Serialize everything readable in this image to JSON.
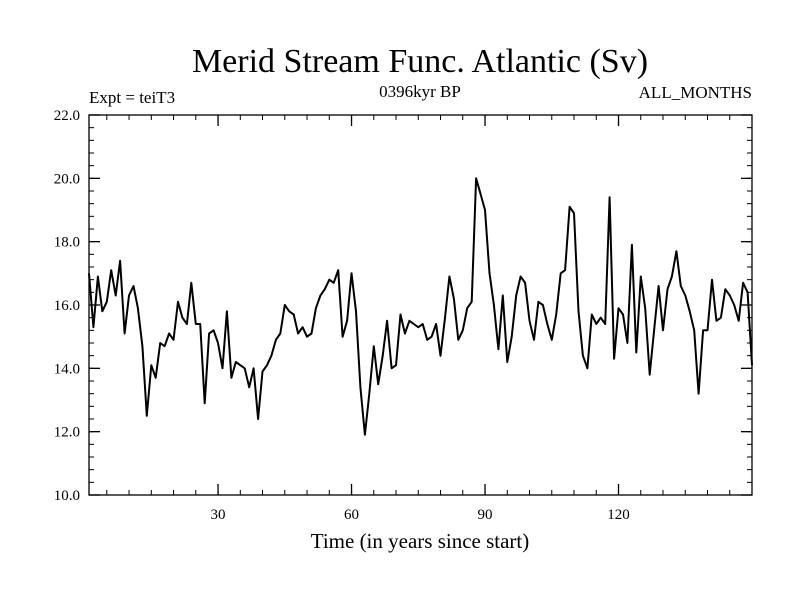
{
  "chart_data": {
    "type": "line",
    "title": "Merid Stream Func. Atlantic (Sv)",
    "left_note": "Expt = teiT3",
    "center_note": "0396kyr BP",
    "right_note": "ALL_MONTHS",
    "xlabel": "Time (in years since start)",
    "ylabel": "",
    "xlim": [
      1,
      150
    ],
    "ylim": [
      10,
      22
    ],
    "xticks": [
      30,
      60,
      90,
      120
    ],
    "xtick_labels": [
      "30",
      "60",
      "90",
      "120"
    ],
    "yticks": [
      10,
      12,
      14,
      16,
      18,
      20,
      22
    ],
    "ytick_labels": [
      "10.0",
      "12.0",
      "14.0",
      "16.0",
      "18.0",
      "20.0",
      "22.0"
    ],
    "grid": false,
    "series": [
      {
        "x": [
          1,
          2,
          3,
          4,
          5,
          6,
          7,
          8,
          9,
          10,
          11,
          12,
          13,
          14,
          15,
          16,
          17,
          18,
          19,
          20,
          21,
          22,
          23,
          24,
          25,
          26,
          27,
          28,
          29,
          30,
          31,
          32,
          33,
          34,
          35,
          36,
          37,
          38,
          39,
          40,
          41,
          42,
          43,
          44,
          45,
          46,
          47,
          48,
          49,
          50,
          51,
          52,
          53,
          54,
          55,
          56,
          57,
          58,
          59,
          60,
          61,
          62,
          63,
          64,
          65,
          66,
          67,
          68,
          69,
          70,
          71,
          72,
          73,
          74,
          75,
          76,
          77,
          78,
          79,
          80,
          81,
          82,
          83,
          84,
          85,
          86,
          87,
          88,
          89,
          90,
          91,
          92,
          93,
          94,
          95,
          96,
          97,
          98,
          99,
          100,
          101,
          102,
          103,
          104,
          105,
          106,
          107,
          108,
          109,
          110,
          111,
          112,
          113,
          114,
          115,
          116,
          117,
          118,
          119,
          120,
          121,
          122,
          123,
          124,
          125,
          126,
          127,
          128,
          129,
          130,
          131,
          132,
          133,
          134,
          135,
          136,
          137,
          138,
          139,
          140,
          141,
          142,
          143,
          144,
          145,
          146,
          147,
          148,
          149,
          150
        ],
        "values": [
          17.0,
          15.3,
          16.9,
          15.8,
          16.1,
          17.1,
          16.3,
          17.4,
          15.1,
          16.3,
          16.6,
          15.9,
          14.7,
          12.5,
          14.1,
          13.7,
          14.8,
          14.7,
          15.1,
          14.9,
          16.1,
          15.6,
          15.4,
          16.7,
          15.4,
          15.4,
          12.9,
          15.1,
          15.2,
          14.8,
          14.0,
          15.8,
          13.7,
          14.2,
          14.1,
          14.0,
          13.4,
          14.0,
          12.4,
          13.9,
          14.1,
          14.4,
          14.9,
          15.1,
          16.0,
          15.8,
          15.7,
          15.1,
          15.3,
          15.0,
          15.1,
          15.9,
          16.3,
          16.5,
          16.8,
          16.7,
          17.1,
          15.0,
          15.5,
          17.0,
          15.8,
          13.4,
          11.9,
          13.2,
          14.7,
          13.5,
          14.4,
          15.5,
          14.0,
          14.1,
          15.7,
          15.1,
          15.5,
          15.4,
          15.3,
          15.4,
          14.9,
          15.0,
          15.4,
          14.4,
          15.6,
          16.9,
          16.2,
          14.9,
          15.2,
          15.9,
          16.1,
          20.0,
          19.5,
          19.0,
          17.0,
          16.0,
          14.6,
          16.3,
          14.2,
          15.0,
          16.3,
          16.9,
          16.7,
          15.5,
          14.9,
          16.1,
          16.0,
          15.4,
          14.9,
          15.7,
          17.0,
          17.1,
          19.1,
          18.9,
          15.8,
          14.4,
          14.0,
          15.7,
          15.4,
          15.6,
          15.4,
          19.4,
          14.3,
          15.9,
          15.7,
          14.8,
          17.9,
          14.5,
          16.9,
          15.9,
          13.8,
          15.2,
          16.6,
          15.2,
          16.5,
          16.9,
          17.7,
          16.6,
          16.3,
          15.8,
          15.2,
          13.2,
          15.2,
          15.2,
          16.8,
          15.5,
          15.6,
          16.5,
          16.3,
          16.0,
          15.5,
          16.7,
          16.4,
          14.1
        ]
      }
    ]
  }
}
